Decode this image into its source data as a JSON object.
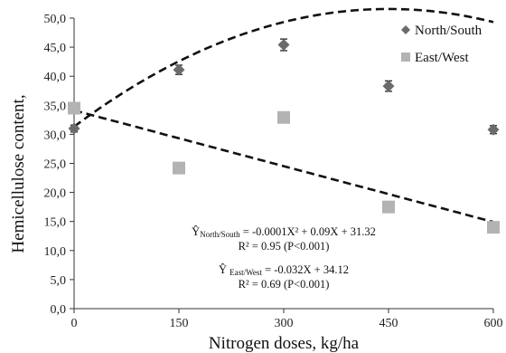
{
  "chart_data": {
    "type": "scatter",
    "title": "",
    "xlabel": "Nitrogen doses, kg/ha",
    "ylabel": "Hemicellulose content,",
    "x_ticks": [
      "0",
      "150",
      "300",
      "450",
      "600"
    ],
    "y_ticks": [
      "0,0",
      "5,0",
      "10,0",
      "15,0",
      "20,0",
      "25,0",
      "30,0",
      "35,0",
      "40,0",
      "45,0",
      "50,0"
    ],
    "xlim": [
      0,
      600
    ],
    "ylim": [
      0,
      50
    ],
    "grid": false,
    "legend_position": "top-right",
    "series": [
      {
        "name": "North/South",
        "marker": "diamond",
        "color": "#6b6b6b",
        "x": [
          0,
          150,
          300,
          450,
          600
        ],
        "y": [
          31.0,
          41.1,
          45.4,
          38.3,
          30.8
        ],
        "error": [
          0.6,
          0.8,
          1.0,
          0.9,
          0.7
        ],
        "fit": {
          "type": "quadratic",
          "a": -0.0001,
          "b": 0.09,
          "c": 31.32
        }
      },
      {
        "name": "East/West",
        "marker": "square",
        "color": "#b3b3b3",
        "x": [
          0,
          150,
          300,
          450,
          600
        ],
        "y": [
          34.5,
          24.2,
          32.9,
          17.5,
          14.0
        ],
        "fit": {
          "type": "linear",
          "slope": -0.032,
          "intercept": 34.12
        }
      }
    ],
    "annotations": {
      "eq1_main": "Ŷ",
      "eq1_sub": "North/South",
      "eq1_rest": " = -0.0001X² + 0.09X + 31.32",
      "eq1_r2": "R² = 0.95 (P<0.001)",
      "eq2_main": "Ŷ ",
      "eq2_sub": "East/West",
      "eq2_rest": " = -0.032X + 34.12",
      "eq2_r2": "R² = 0.69 (P<0.001)"
    }
  }
}
